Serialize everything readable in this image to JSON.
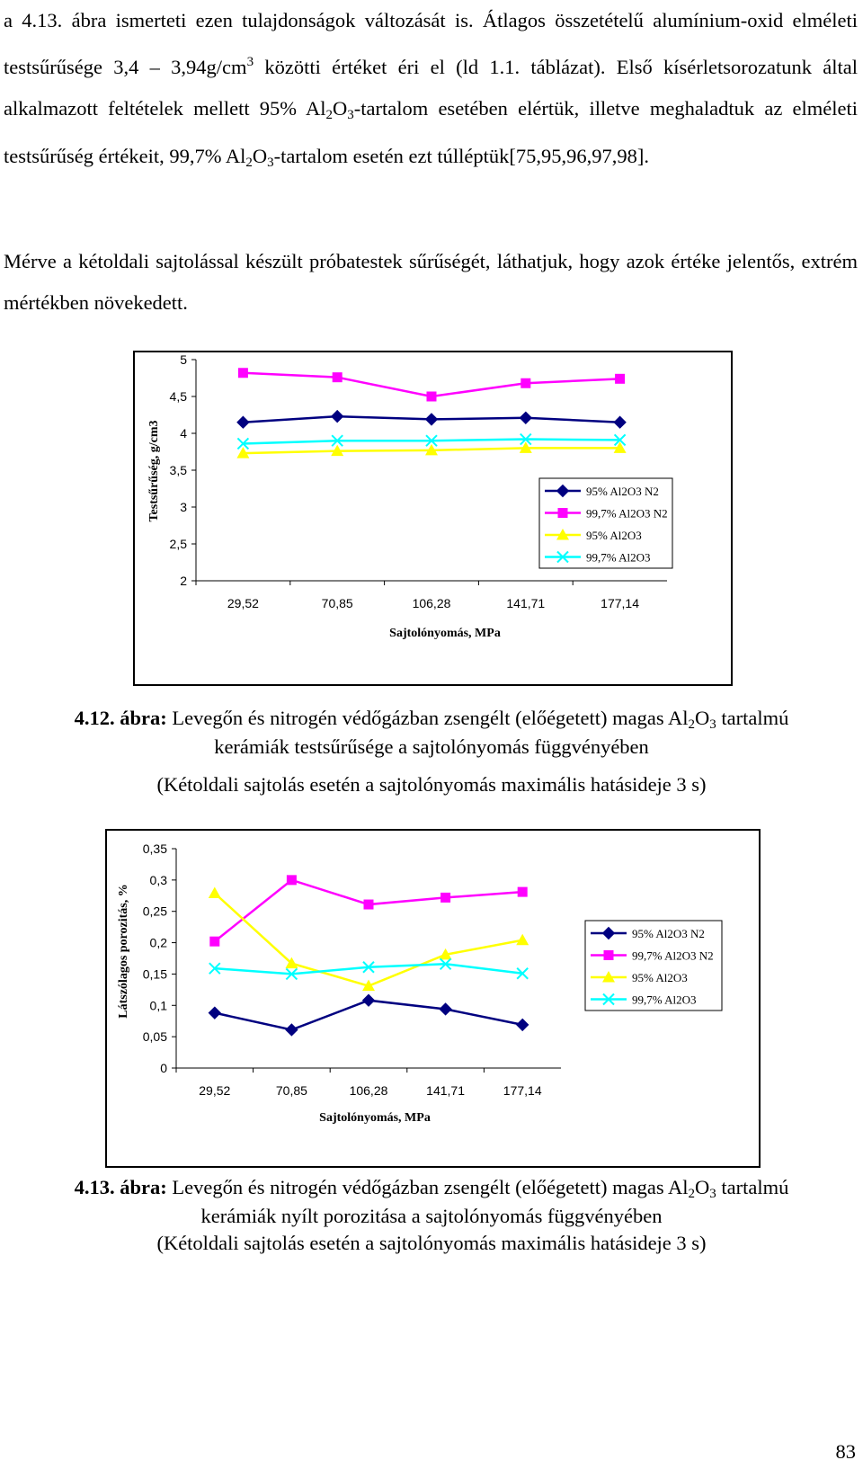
{
  "paragraph1": {
    "p1": "a 4.13. ábra ismerteti ezen tulajdonságok változását is. Átlagos összetételű alumínium-oxid elméleti testsűrűsége 3,4 – 3,94g/cm",
    "sup1": "3",
    "p2": " közötti értéket éri el (ld 1.1. táblázat). Első kísérletsorozatunk által alkalmazott feltételek mellett 95% Al",
    "sub1": "2",
    "p3": "O",
    "sub2": "3",
    "p4": "-tartalom esetében elértük, illetve meghaladtuk az elméleti testsűrűség értékeit, 99,7% Al",
    "sub3": "2",
    "p5": "O",
    "sub4": "3",
    "p6": "-tartalom esetén ezt túlléptük[75,95,96,97,98]."
  },
  "paragraph2": "Mérve a kétoldali sajtolással készült próbatestek sűrűségét, láthatjuk, hogy azok értéke jelentős, extrém mértékben növekedett.",
  "caption1": {
    "label": "4.12. ábra:",
    "t1": " Levegőn és nitrogén védőgázban zsengélt (előégetett) magas Al",
    "sub1": "2",
    "t2": "O",
    "sub2": "3",
    "t3": " tartalmú",
    "line2": "kerámiák testsűrűsége a sajtolónyomás függvényében",
    "line3": "(Kétoldali sajtolás esetén a sajtolónyomás maximális hatásideje 3 s)"
  },
  "caption2": {
    "label": "4.13. ábra:",
    "t1": " Levegőn és nitrogén védőgázban zsengélt (előégetett) magas Al",
    "sub1": "2",
    "t2": "O",
    "sub2": "3",
    "t3": " tartalmú",
    "line2": "kerámiák nyílt porozitása a sajtolónyomás függvényében",
    "line3": "(Kétoldali sajtolás esetén a sajtolónyomás maximális hatásideje 3 s)"
  },
  "page_number": "83",
  "chart_data": [
    {
      "type": "line",
      "xlabel": "Sajtolónyomás, MPa",
      "ylabel": "Testsűrűség, g/cm3",
      "categories": [
        "29,52",
        "70,85",
        "106,28",
        "141,71",
        "177,14"
      ],
      "yticks": [
        "5",
        "4,5",
        "4",
        "3,5",
        "3",
        "2,5",
        "2"
      ],
      "ylim": [
        2,
        5
      ],
      "grid": false,
      "legend_position": "right",
      "series": [
        {
          "name": "95% Al2O3 N2",
          "color": "#000080",
          "marker": "diamond",
          "values": [
            4.15,
            4.23,
            4.19,
            4.21,
            4.15
          ]
        },
        {
          "name": "99,7% Al2O3 N2",
          "color": "#ff00ff",
          "marker": "square",
          "values": [
            4.82,
            4.76,
            4.5,
            4.68,
            4.74
          ]
        },
        {
          "name": "95% Al2O3",
          "color": "#ffff00",
          "marker": "triangle",
          "values": [
            3.73,
            3.76,
            3.77,
            3.8,
            3.8
          ]
        },
        {
          "name": "99,7% Al2O3",
          "color": "#00ffff",
          "marker": "x",
          "values": [
            3.86,
            3.9,
            3.9,
            3.92,
            3.91
          ]
        }
      ]
    },
    {
      "type": "line",
      "xlabel": "Sajtolónyomás, MPa",
      "ylabel": "Látszólagos porozitás, %",
      "categories": [
        "29,52",
        "70,85",
        "106,28",
        "141,71",
        "177,14"
      ],
      "yticks": [
        "0,35",
        "0,3",
        "0,25",
        "0,2",
        "0,15",
        "0,1",
        "0,05",
        "0"
      ],
      "ylim": [
        0,
        0.35
      ],
      "grid": false,
      "legend_position": "right",
      "series": [
        {
          "name": "95% Al2O3 N2",
          "color": "#000080",
          "marker": "diamond",
          "values": [
            0.088,
            0.061,
            0.108,
            0.094,
            0.069
          ]
        },
        {
          "name": "99,7% Al2O3 N2",
          "color": "#ff00ff",
          "marker": "square",
          "values": [
            0.202,
            0.3,
            0.261,
            0.272,
            0.281
          ]
        },
        {
          "name": "95% Al2O3",
          "color": "#ffff00",
          "marker": "triangle",
          "values": [
            0.279,
            0.167,
            0.131,
            0.181,
            0.204
          ]
        },
        {
          "name": "99,7% Al2O3",
          "color": "#00ffff",
          "marker": "x",
          "values": [
            0.159,
            0.15,
            0.161,
            0.166,
            0.151
          ]
        }
      ]
    }
  ]
}
